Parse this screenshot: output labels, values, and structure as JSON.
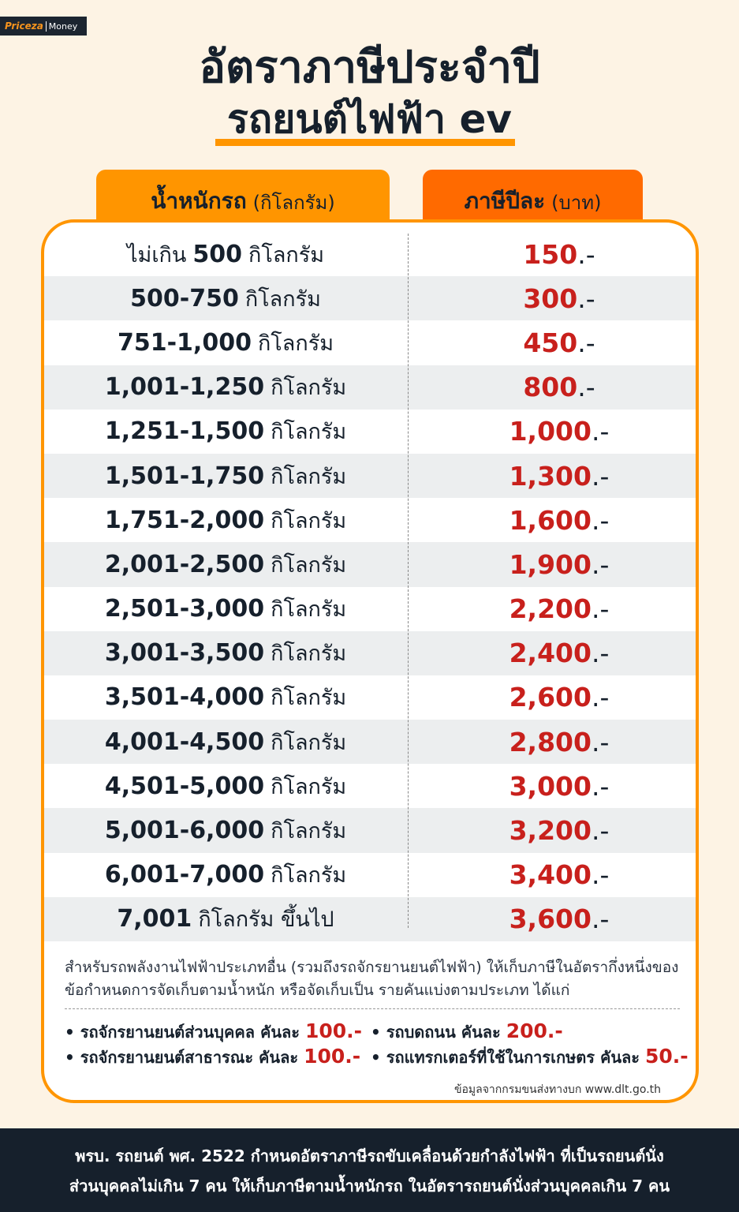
{
  "logo": {
    "brand": "Priceza",
    "sub": "Money"
  },
  "title": {
    "line1": "อัตราภาษีประจำปี",
    "line2": "รถยนต์ไฟฟ้า ev"
  },
  "headers": {
    "weight": "น้ำหนักรถ",
    "weight_unit": "(กิโลกรัม)",
    "tax": "ภาษีปีละ",
    "tax_unit": "(บาท)"
  },
  "unit": "กิโลกรัม",
  "suffix": ".-",
  "rows": [
    {
      "w_pre": "ไม่เกิน",
      "w": "500",
      "u": "กิโลกรัม",
      "t": "150"
    },
    {
      "w": "500-750",
      "u": "กิโลกรัม",
      "t": "300"
    },
    {
      "w": "751-1,000",
      "u": "กิโลกรัม",
      "t": "450"
    },
    {
      "w": "1,001-1,250",
      "u": "กิโลกรัม",
      "t": "800"
    },
    {
      "w": "1,251-1,500",
      "u": "กิโลกรัม",
      "t": "1,000"
    },
    {
      "w": "1,501-1,750",
      "u": "กิโลกรัม",
      "t": "1,300"
    },
    {
      "w": "1,751-2,000",
      "u": "กิโลกรัม",
      "t": "1,600"
    },
    {
      "w": "2,001-2,500",
      "u": "กิโลกรัม",
      "t": "1,900"
    },
    {
      "w": "2,501-3,000",
      "u": "กิโลกรัม",
      "t": "2,200"
    },
    {
      "w": "3,001-3,500",
      "u": "กิโลกรัม",
      "t": "2,400"
    },
    {
      "w": "3,501-4,000",
      "u": "กิโลกรัม",
      "t": "2,600"
    },
    {
      "w": "4,001-4,500",
      "u": "กิโลกรัม",
      "t": "2,800"
    },
    {
      "w": "4,501-5,000",
      "u": "กิโลกรัม",
      "t": "3,000"
    },
    {
      "w": "5,001-6,000",
      "u": "กิโลกรัม",
      "t": "3,200"
    },
    {
      "w": "6,001-7,000",
      "u": "กิโลกรัม",
      "t": "3,400"
    },
    {
      "w": "7,001",
      "u": "กิโลกรัม ขึ้นไป",
      "t": "3,600"
    }
  ],
  "note": "สำหรับรถพลังงานไฟฟ้าประเภทอื่น (รวมถึงรถจักรยานยนต์ไฟฟ้า) ให้เก็บภาษีในอัตรากึ่งหนึ่งของข้อกำหนดการจัดเก็บตามน้ำหนัก หรือจัดเก็บเป็น รายคันแบ่งตามประเภท ได้แก่",
  "bullets": [
    {
      "label": "• รถจักรยานยนต์ส่วนบุคคล คันละ",
      "value": "100.-"
    },
    {
      "label": "• รถบดถนน คันละ",
      "value": "200.-"
    },
    {
      "label": "• รถจักรยานยนต์สาธารณะ คันละ",
      "value": "100.-"
    },
    {
      "label": "• รถแทรกเตอร์ที่ใช้ในการเกษตร คันละ",
      "value": "50.-"
    }
  ],
  "source": "ข้อมูลจากกรมขนส่งทางบก www.dlt.go.th",
  "footer": {
    "line1": "พรบ. รถยนต์ พศ. 2522 กำหนดอัตราภาษีรถขับเคลื่อนด้วยกำลังไฟฟ้า ที่เป็นรถยนต์นั่ง",
    "line2": "ส่วนบุคคลไม่เกิน 7 คน ให้เก็บภาษีตามน้ำหนักรถ ในอัตรารถยนต์นั่งส่วนบุคคลเกิน 7 คน"
  },
  "colors": {
    "accent": "#ff9500",
    "accent2": "#ff6a00",
    "price": "#c8201c",
    "dark": "#16202c",
    "bg": "#fdf3e4"
  }
}
